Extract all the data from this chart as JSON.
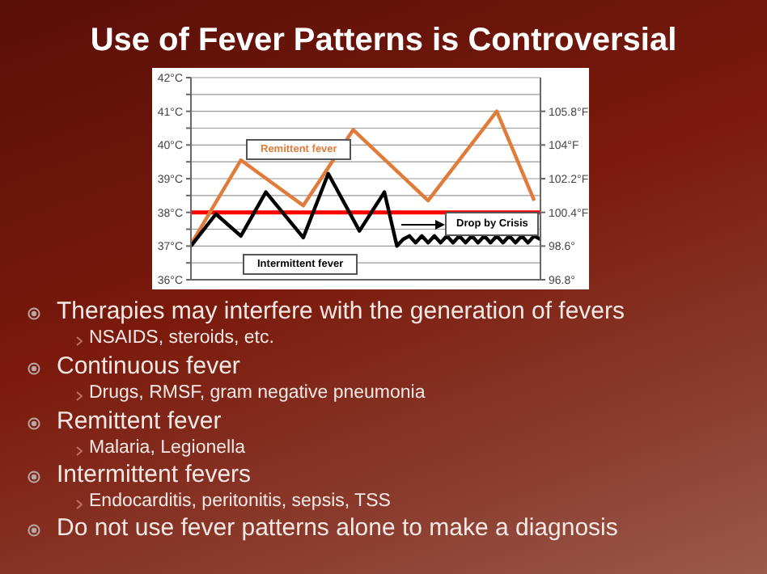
{
  "chart_data": {
    "type": "line",
    "title": "Use of Fever Patterns is Controversial",
    "categories": [
      null,
      null,
      null,
      null,
      null,
      null,
      null,
      null,
      null,
      null,
      null,
      null,
      null,
      null,
      null,
      null,
      null,
      null,
      null,
      null,
      null,
      null,
      null,
      null,
      null,
      null,
      null,
      null,
      null,
      null,
      null,
      null,
      null,
      null,
      null,
      null,
      null,
      null,
      null,
      null,
      null,
      null,
      null,
      null,
      null,
      null,
      null,
      null,
      null,
      null,
      null,
      null,
      null,
      null,
      null,
      null,
      null
    ],
    "series": [
      {
        "name": "Remittent fever",
        "color": "#e07b39",
        "values": [
          37.05,
          null,
          null,
          null,
          null,
          null,
          null,
          null,
          39.55,
          null,
          null,
          null,
          null,
          null,
          null,
          null,
          null,
          null,
          38.2,
          null,
          null,
          null,
          null,
          null,
          null,
          null,
          40.45,
          null,
          null,
          null,
          null,
          null,
          null,
          null,
          null,
          null,
          null,
          null,
          38.35,
          null,
          null,
          null,
          null,
          null,
          null,
          null,
          null,
          null,
          null,
          41.0,
          null,
          null,
          null,
          null,
          null,
          38.35,
          null
        ]
      },
      {
        "name": "Intermittent fever",
        "color": "#000000",
        "values": [
          37.0,
          null,
          null,
          null,
          37.95,
          null,
          null,
          null,
          37.3,
          null,
          null,
          null,
          38.6,
          null,
          null,
          null,
          null,
          null,
          37.25,
          null,
          null,
          null,
          39.15,
          null,
          null,
          null,
          null,
          37.45,
          null,
          null,
          null,
          38.6,
          null,
          37.0,
          37.2,
          37.3,
          37.1,
          37.3,
          37.1,
          37.3,
          37.1,
          37.3,
          37.1,
          37.3,
          37.1,
          37.3,
          37.1,
          37.3,
          37.1,
          37.3,
          37.1,
          37.3,
          37.1,
          37.3,
          37.1,
          37.3,
          37.2
        ]
      }
    ],
    "ylim": [
      36,
      42
    ],
    "yticks": [
      {
        "value": 36,
        "label": "36°C"
      },
      {
        "value": 36.5,
        "label": null
      },
      {
        "value": 37,
        "label": "37°C"
      },
      {
        "value": 37.5,
        "label": null
      },
      {
        "value": 38,
        "label": "38°C"
      },
      {
        "value": 38.5,
        "label": null
      },
      {
        "value": 39,
        "label": "39°C"
      },
      {
        "value": 39.5,
        "label": null
      },
      {
        "value": 40,
        "label": "40°C"
      },
      {
        "value": 40.5,
        "label": null
      },
      {
        "value": 41,
        "label": "41°C"
      },
      {
        "value": 41.5,
        "label": null
      },
      {
        "value": 42,
        "label": "42°C"
      }
    ],
    "y2lim": [
      96.8,
      107.6
    ],
    "y2ticks": [
      {
        "value": 96.8,
        "label": "96.8°"
      },
      {
        "value": 98.6,
        "label": "98.6°"
      },
      {
        "value": 100.4,
        "label": "100.4°F"
      },
      {
        "value": 102.2,
        "label": "102.2°F"
      },
      {
        "value": 104,
        "label": "104°F"
      },
      {
        "value": 105.8,
        "label": "105.8°F"
      }
    ],
    "ref_lines": [
      {
        "axis": "y",
        "value": 38,
        "color": "#ff0000"
      }
    ],
    "grid": true,
    "marker": "none",
    "line_style": "solid",
    "annotations": [
      "Drop by Crisis",
      "Therapies may interfere with the generation of fevers",
      "NSAIDS, steroids, etc.",
      "Continuous fever",
      "Drugs, RMSF, gram negative pneumonia",
      "Remittent fever",
      "Malaria, Legionella",
      "Intermittent fevers",
      "Endocarditis, peritonitis, sepsis, TSS",
      "Do not use fever patterns alone to make a diagnosis"
    ]
  }
}
